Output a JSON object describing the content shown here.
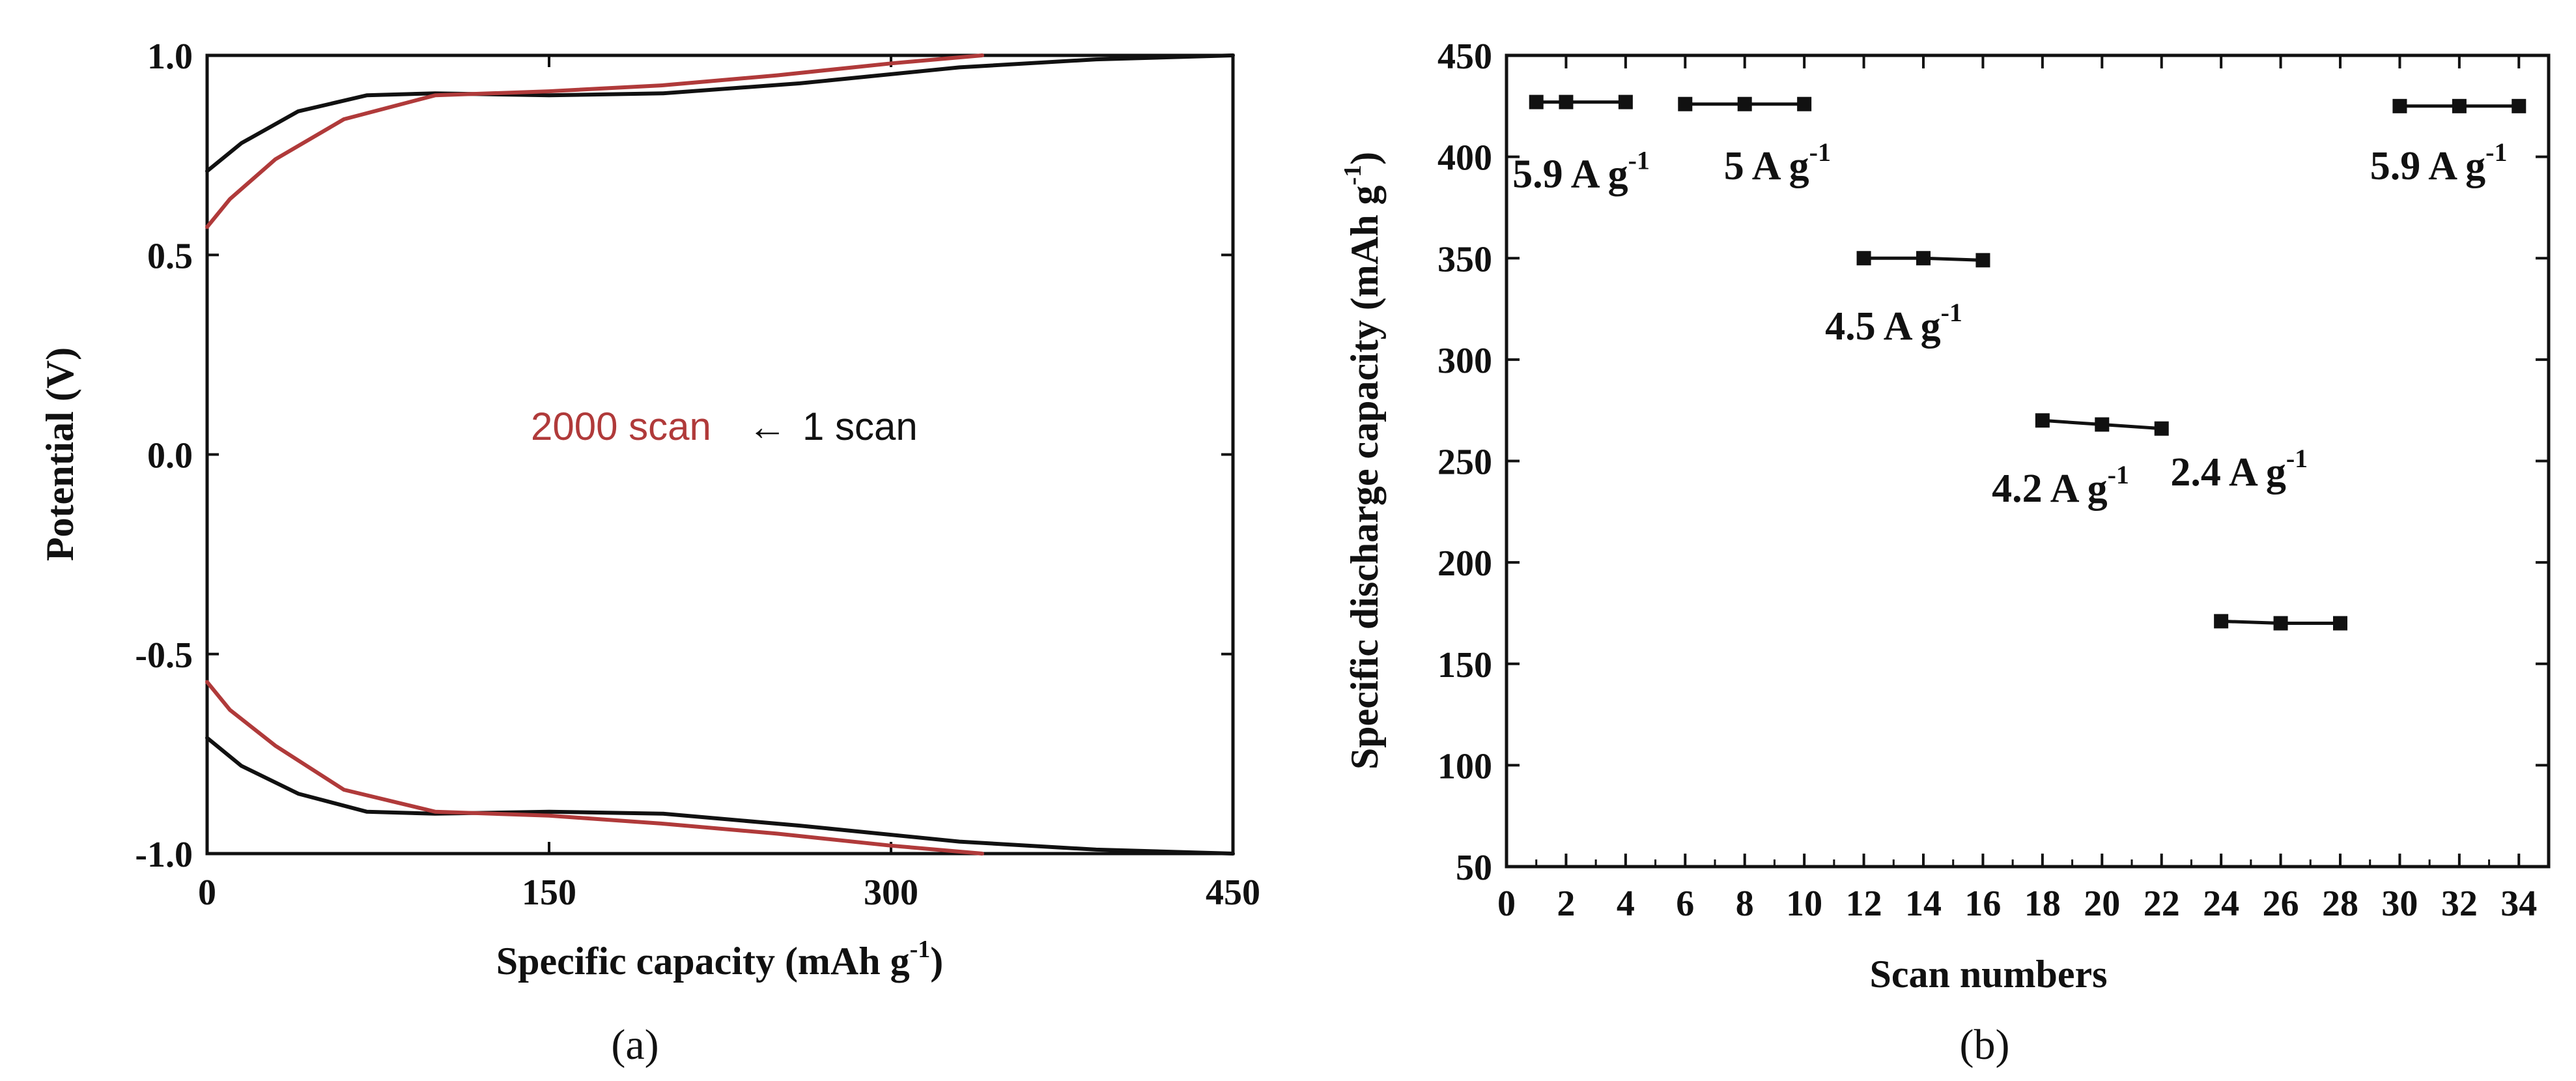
{
  "chart_data": [
    {
      "panel": "(a)",
      "type": "line",
      "title": "",
      "xlabel": "Specific capacity (mAh g-1)",
      "ylabel": "Potential (V)",
      "xlim": [
        0,
        450
      ],
      "ylim": [
        -1.0,
        1.0
      ],
      "xticks": [
        "0",
        "150",
        "300",
        "450"
      ],
      "yticks": [
        "1.0",
        "0.5",
        "0.0",
        "-0.5",
        "-1.0"
      ],
      "annotations": {
        "red_label": "2000 scan",
        "arrow": "←",
        "black_label": "1 scan"
      },
      "series": [
        {
          "name": "1 scan",
          "color": "#111111",
          "charge": [
            [
              0,
              0.71
            ],
            [
              15,
              0.78
            ],
            [
              40,
              0.86
            ],
            [
              70,
              0.9
            ],
            [
              100,
              0.905
            ],
            [
              150,
              0.9
            ],
            [
              200,
              0.905
            ],
            [
              260,
              0.93
            ],
            [
              330,
              0.97
            ],
            [
              390,
              0.99
            ],
            [
              450,
              1.0
            ]
          ],
          "discharge": [
            [
              0,
              -0.71
            ],
            [
              15,
              -0.78
            ],
            [
              40,
              -0.85
            ],
            [
              70,
              -0.895
            ],
            [
              100,
              -0.9
            ],
            [
              150,
              -0.895
            ],
            [
              200,
              -0.9
            ],
            [
              260,
              -0.93
            ],
            [
              330,
              -0.97
            ],
            [
              390,
              -0.99
            ],
            [
              450,
              -1.0
            ]
          ]
        },
        {
          "name": "2000 scan",
          "color": "#b03a3a",
          "charge": [
            [
              0,
              0.57
            ],
            [
              10,
              0.64
            ],
            [
              30,
              0.74
            ],
            [
              60,
              0.84
            ],
            [
              100,
              0.9
            ],
            [
              150,
              0.91
            ],
            [
              200,
              0.925
            ],
            [
              250,
              0.95
            ],
            [
              300,
              0.98
            ],
            [
              340,
              1.0
            ]
          ],
          "discharge": [
            [
              0,
              -0.57
            ],
            [
              10,
              -0.64
            ],
            [
              30,
              -0.73
            ],
            [
              60,
              -0.84
            ],
            [
              100,
              -0.895
            ],
            [
              150,
              -0.905
            ],
            [
              200,
              -0.925
            ],
            [
              250,
              -0.95
            ],
            [
              300,
              -0.98
            ],
            [
              340,
              -1.0
            ]
          ]
        }
      ]
    },
    {
      "panel": "(b)",
      "type": "scatter",
      "title": "",
      "xlabel": "Scan numbers",
      "ylabel": "Specific discharge capacity (mAh g-1)",
      "xlim": [
        0,
        35
      ],
      "ylim": [
        50,
        450
      ],
      "xticks": [
        "0",
        "2",
        "4",
        "6",
        "8",
        "10",
        "12",
        "14",
        "16",
        "18",
        "20",
        "22",
        "24",
        "26",
        "28",
        "30",
        "32",
        "34"
      ],
      "yticks": [
        "450",
        "400",
        "350",
        "300",
        "250",
        "200",
        "150",
        "100",
        "50"
      ],
      "series": [
        {
          "name": "5.9 A g-1",
          "x": [
            1,
            2,
            4
          ],
          "y": [
            427,
            427,
            427
          ]
        },
        {
          "name": "5 A g-1",
          "x": [
            6,
            8,
            10
          ],
          "y": [
            426,
            426,
            426
          ]
        },
        {
          "name": "4.5 A g-1",
          "x": [
            12,
            14,
            16
          ],
          "y": [
            350,
            350,
            349
          ]
        },
        {
          "name": "4.2 A g-1",
          "x": [
            18,
            20,
            22
          ],
          "y": [
            270,
            268,
            266
          ]
        },
        {
          "name": "2.4 A g-1",
          "x": [
            24,
            26,
            28
          ],
          "y": [
            171,
            170,
            170
          ]
        },
        {
          "name": "5.9 A g-1",
          "x": [
            30,
            32,
            34
          ],
          "y": [
            425,
            425,
            425
          ]
        }
      ],
      "labels": [
        {
          "text": "5.9 A g",
          "sup": "-1"
        },
        {
          "text": "5 A g",
          "sup": "-1"
        },
        {
          "text": "4.5 A g",
          "sup": "-1"
        },
        {
          "text": "4.2 A g",
          "sup": "-1"
        },
        {
          "text": "2.4 A g",
          "sup": "-1"
        },
        {
          "text": "5.9 A g",
          "sup": "-1"
        }
      ]
    }
  ],
  "axis_titles": {
    "a_x_main": "Specific capacity (mAh g",
    "a_x_sup": "-1",
    "a_x_end": ")",
    "a_y": "Potential (V)",
    "b_x": "Scan numbers",
    "b_y_main": "Specific discharge capacity (mAh g",
    "b_y_sup": "-1",
    "b_y_end": ")"
  },
  "panel_labels": {
    "a": "(a)",
    "b": "(b)"
  }
}
